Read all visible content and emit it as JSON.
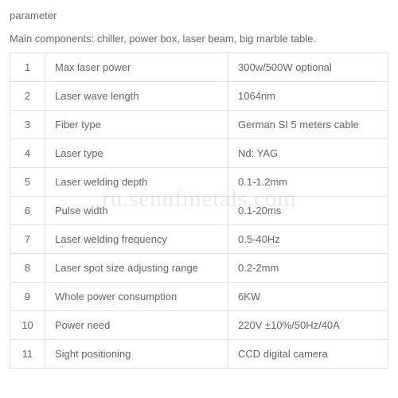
{
  "heading": "parameter",
  "subtitle": "Main components: chiller, power box, laser beam, big marble table.",
  "watermark": "ru.senufmetals.com",
  "table": {
    "columns": {
      "num_width": 44,
      "param_width": 230
    },
    "border_color": "#e0e0e0",
    "text_color": "#666666",
    "font_size": 13,
    "rows": [
      {
        "num": "1",
        "param": "Max laser power",
        "value": "300w/500W optional"
      },
      {
        "num": "2",
        "param": "Laser wave length",
        "value": "1064nm"
      },
      {
        "num": "3",
        "param": "Fiber type",
        "value": "German SI 5 meters cable"
      },
      {
        "num": "4",
        "param": "Laser type",
        "value": "Nd: YAG"
      },
      {
        "num": "5",
        "param": "Laser welding depth",
        "value": "0.1-1.2mm"
      },
      {
        "num": "6",
        "param": "Pulse width",
        "value": "0.1-20ms"
      },
      {
        "num": "7",
        "param": "Laser welding frequency",
        "value": "0.5-40Hz"
      },
      {
        "num": "8",
        "param": "Laser spot size adjusting range",
        "value": "0.2-2mm"
      },
      {
        "num": "9",
        "param": "Whole power consumption",
        "value": "6KW"
      },
      {
        "num": "10",
        "param": "Power need",
        "value": "220V ±10%/50Hz/40A"
      },
      {
        "num": "11",
        "param": "Sight positioning",
        "value": "CCD digital camera"
      }
    ]
  }
}
